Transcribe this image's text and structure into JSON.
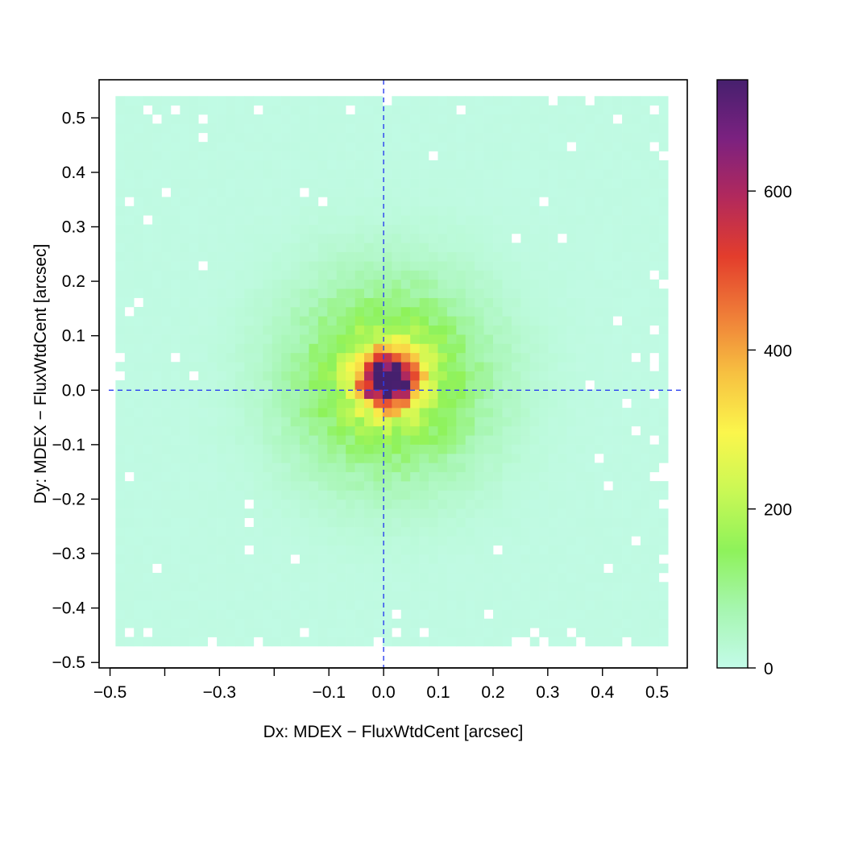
{
  "chart_data": {
    "type": "heatmap",
    "title": "",
    "xlabel": "Dx: MDEX − FluxWtdCent [arcsec]",
    "ylabel": "Dy: MDEX − FluxWtdCent [arcsec]",
    "xlim": [
      -0.52,
      0.555
    ],
    "ylim": [
      -0.51,
      0.57
    ],
    "x_ticks": [
      -0.5,
      -0.4,
      -0.3,
      -0.2,
      -0.1,
      0.0,
      0.1,
      0.2,
      0.3,
      0.4,
      0.5
    ],
    "x_tick_labels": [
      "−0.5",
      "",
      "−0.3",
      "",
      "−0.1",
      "0.0",
      "0.1",
      "0.2",
      "0.3",
      "0.4",
      "0.5"
    ],
    "y_ticks": [
      -0.5,
      -0.4,
      -0.3,
      -0.2,
      -0.1,
      0.0,
      0.1,
      0.2,
      0.3,
      0.4,
      0.5
    ],
    "y_tick_labels": [
      "−0.5",
      "−0.4",
      "−0.3",
      "−0.2",
      "−0.1",
      "0.0",
      "0.1",
      "0.2",
      "0.3",
      "0.4",
      "0.5"
    ],
    "bins": {
      "x_range": [
        -0.49,
        0.52
      ],
      "y_range": [
        -0.47,
        0.54
      ],
      "nx": 60,
      "ny": 60,
      "distribution": "2D Gaussian core centered near (0.01, 0.02) with sigma about 0.035 arcsec, peak about 720 counts, on a broad halo; sparse empty bins near the edges"
    },
    "reference_lines": [
      {
        "orientation": "vertical",
        "x": 0.0,
        "style": "dashed",
        "color": "#2a3ff0"
      },
      {
        "orientation": "horizontal",
        "y": 0.0,
        "style": "dashed",
        "color": "#2a3ff0"
      }
    ],
    "colorbar": {
      "ticks": [
        0,
        200,
        400,
        600
      ],
      "tick_labels": [
        "0",
        "200",
        "400",
        "600"
      ],
      "range": [
        0,
        740
      ],
      "colors": [
        "#c3fbe9",
        "#a6f6b0",
        "#8ef25a",
        "#c9f855",
        "#fbf64c",
        "#f7c141",
        "#ef7d38",
        "#e33d2c",
        "#b2295c",
        "#7b2180",
        "#46206e"
      ]
    }
  }
}
